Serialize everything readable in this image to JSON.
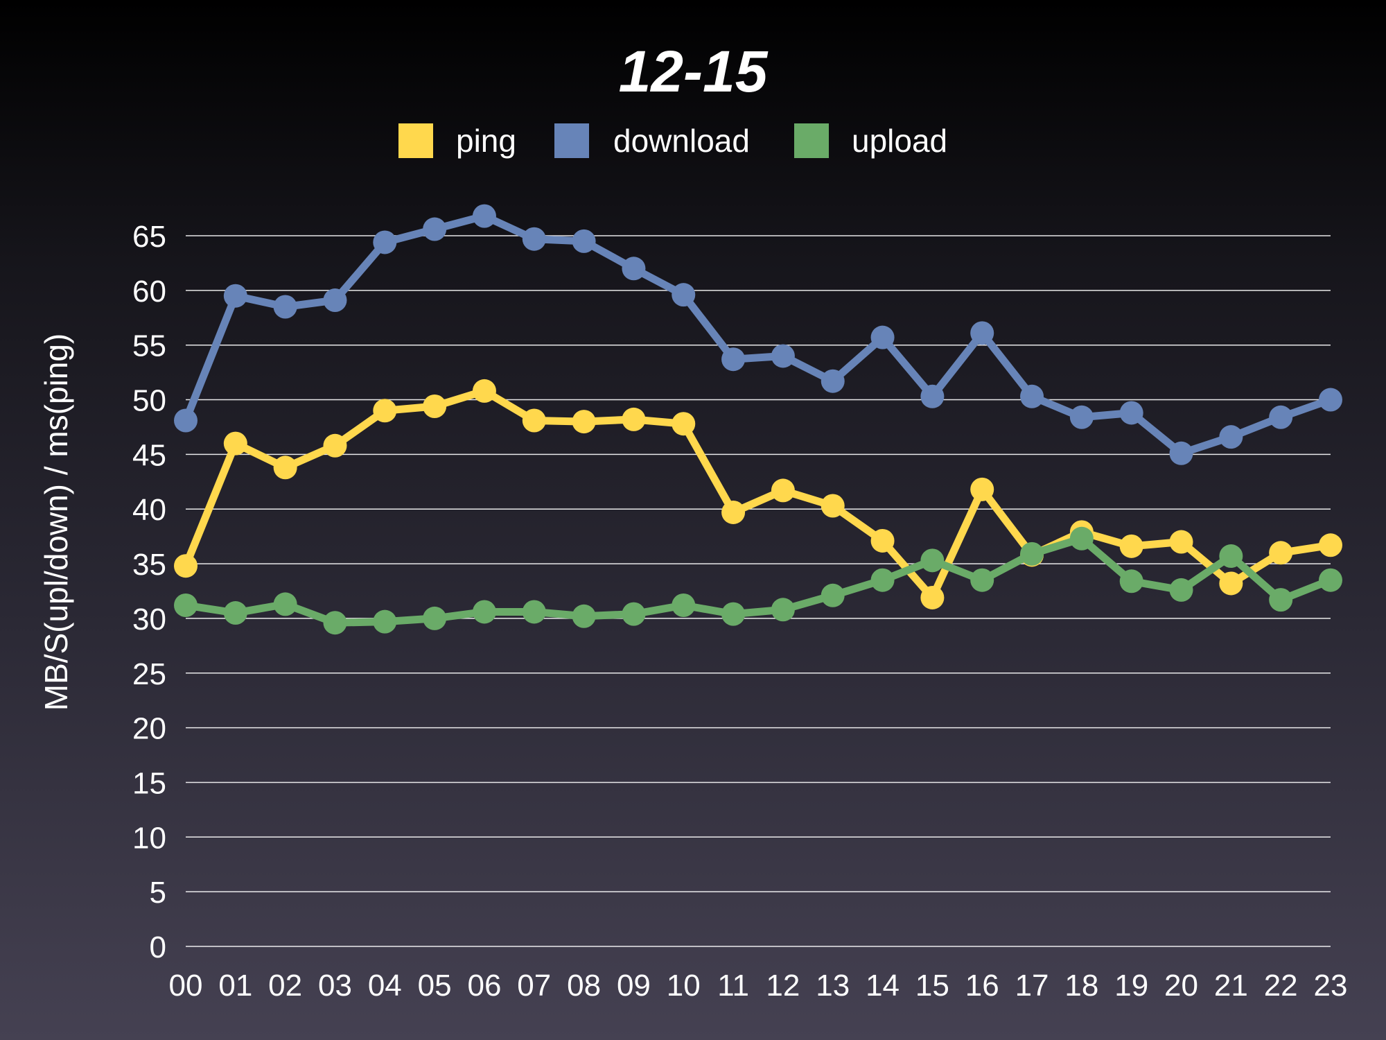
{
  "chart_data": {
    "type": "line",
    "title": "12-15",
    "ylabel": "MB/S(upl/down) / ms(ping)",
    "xlabel": "",
    "ylim": [
      0,
      65
    ],
    "yticks": [
      0,
      5,
      10,
      15,
      20,
      25,
      30,
      35,
      40,
      45,
      50,
      55,
      60,
      65
    ],
    "grid": true,
    "legend_position": "top-center",
    "categories": [
      "00",
      "01",
      "02",
      "03",
      "04",
      "05",
      "06",
      "07",
      "08",
      "09",
      "10",
      "11",
      "12",
      "13",
      "14",
      "15",
      "16",
      "17",
      "18",
      "19",
      "20",
      "21",
      "22",
      "23"
    ],
    "series": [
      {
        "name": "ping",
        "color": "#ffd84d",
        "values": [
          34.8,
          46.0,
          43.8,
          45.8,
          49.0,
          49.4,
          50.8,
          48.1,
          48.0,
          48.2,
          47.8,
          39.7,
          41.7,
          40.3,
          37.1,
          31.9,
          41.8,
          35.8,
          37.9,
          36.6,
          37.0,
          33.2,
          36.0,
          36.7
        ]
      },
      {
        "name": "download",
        "color": "#6784b8",
        "values": [
          48.1,
          59.5,
          58.5,
          59.1,
          64.4,
          65.6,
          66.8,
          64.7,
          64.5,
          62.0,
          59.6,
          53.7,
          54.0,
          51.7,
          55.7,
          50.3,
          56.1,
          50.3,
          48.4,
          48.8,
          45.1,
          46.6,
          48.4,
          50.0
        ]
      },
      {
        "name": "upload",
        "color": "#6aab68",
        "values": [
          31.2,
          30.5,
          31.3,
          29.6,
          29.7,
          30.0,
          30.6,
          30.6,
          30.2,
          30.4,
          31.2,
          30.4,
          30.8,
          32.1,
          33.5,
          35.3,
          33.5,
          35.9,
          37.3,
          33.4,
          32.6,
          35.7,
          31.7,
          33.5
        ]
      }
    ]
  }
}
